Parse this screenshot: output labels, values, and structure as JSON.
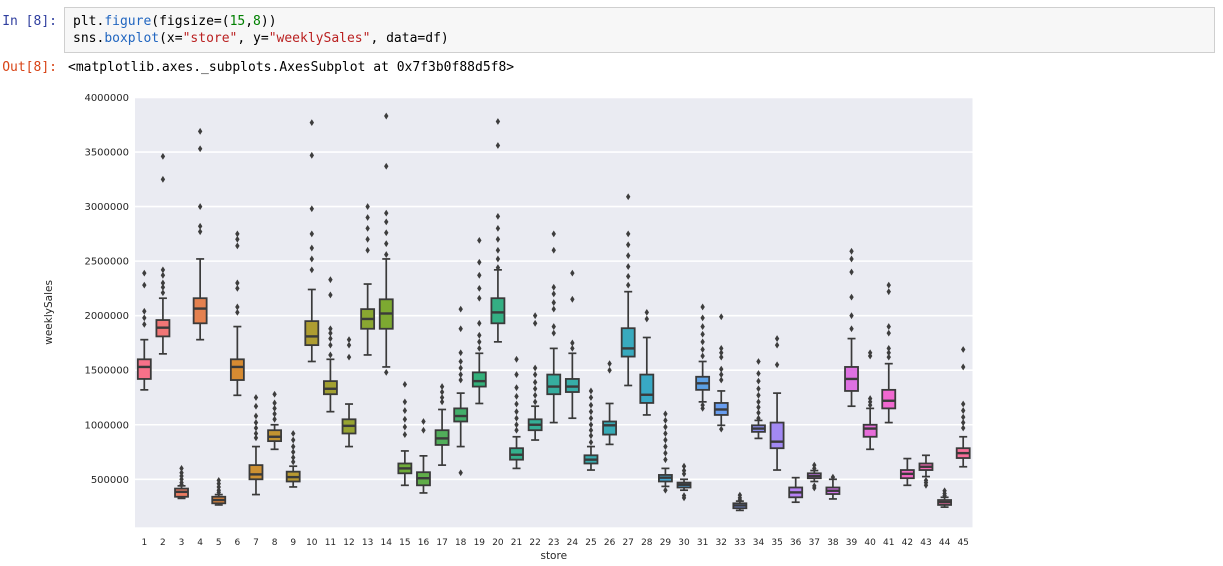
{
  "notebook": {
    "input_prompt": "In [8]:",
    "output_prompt": "Out[8]:",
    "output_text": "<matplotlib.axes._subplots.AxesSubplot at 0x7f3b0f88d5f8>",
    "code_lines": [
      [
        {
          "t": "plt.",
          "c": "plain"
        },
        {
          "t": "figure",
          "c": "prop"
        },
        {
          "t": "(figsize=(",
          "c": "plain"
        },
        {
          "t": "15",
          "c": "num"
        },
        {
          "t": ",",
          "c": "plain"
        },
        {
          "t": "8",
          "c": "num"
        },
        {
          "t": "))",
          "c": "plain"
        }
      ],
      [
        {
          "t": "sns.",
          "c": "plain"
        },
        {
          "t": "boxplot",
          "c": "prop"
        },
        {
          "t": "(x=",
          "c": "plain"
        },
        {
          "t": "\"store\"",
          "c": "str"
        },
        {
          "t": ", y=",
          "c": "plain"
        },
        {
          "t": "\"weeklySales\"",
          "c": "str"
        },
        {
          "t": ", data=df)",
          "c": "plain"
        }
      ]
    ],
    "colors": {
      "prompt_in": "#303f9f",
      "prompt_out": "#d84315",
      "code_bg": "#f7f7f7",
      "code_border": "#cfcfcf",
      "token_property": "#2166c0",
      "token_number": "#008000",
      "token_string": "#ba2121"
    }
  },
  "chart_data": {
    "type": "boxplot",
    "title": "",
    "xlabel": "store",
    "ylabel": "weeklySales",
    "ylim": [
      60000,
      4000000
    ],
    "yticks": [
      500000,
      1000000,
      1500000,
      2000000,
      2500000,
      3000000,
      3500000,
      4000000
    ],
    "ytick_labels": [
      "500000",
      "1000000",
      "1500000",
      "2000000",
      "2500000",
      "3000000",
      "3500000",
      "4000000"
    ],
    "categories": [
      "1",
      "2",
      "3",
      "4",
      "5",
      "6",
      "7",
      "8",
      "9",
      "10",
      "11",
      "12",
      "13",
      "14",
      "15",
      "16",
      "17",
      "18",
      "19",
      "20",
      "21",
      "22",
      "23",
      "24",
      "25",
      "26",
      "27",
      "28",
      "29",
      "30",
      "31",
      "32",
      "33",
      "34",
      "35",
      "36",
      "37",
      "38",
      "39",
      "40",
      "41",
      "42",
      "43",
      "44",
      "45"
    ],
    "grid": true,
    "legend": "none",
    "plot_bg": "#eaebf2",
    "grid_color": "#ffffff",
    "edge_color": "#3a3a3a",
    "flier_color": "#3d3d3d",
    "tick_color": "#262626",
    "palette": [
      "#f77189",
      "#f17676",
      "#eb7c62",
      "#e5814f",
      "#df863c",
      "#d78b32",
      "#cd9032",
      "#c29431",
      "#b89931",
      "#ae9d31",
      "#a2a031",
      "#96a331",
      "#89a631",
      "#7da931",
      "#6fac39",
      "#60ad49",
      "#51ae5a",
      "#42af6a",
      "#33b07a",
      "#34af83",
      "#34af8d",
      "#35ae96",
      "#36ad9f",
      "#36ada8",
      "#37acaf",
      "#37abb6",
      "#38aabe",
      "#38a9c5",
      "#44a6cf",
      "#50a3da",
      "#5ca0e4",
      "#689def",
      "#7897f4",
      "#8d90f4",
      "#a289f4",
      "#b781f4",
      "#cc7af4",
      "#d575eb",
      "#de71e2",
      "#e76cd9",
      "#f068d0",
      "#f566c5",
      "#f669b6",
      "#f66ca7",
      "#f76e98"
    ],
    "stores": [
      {
        "label": "1",
        "lo": 1320000,
        "q1": 1420000,
        "med": 1530000,
        "q3": 1600000,
        "hi": 1780000,
        "fliers": [
          1920000,
          1980000,
          2040000,
          2280000,
          2390000
        ]
      },
      {
        "label": "2",
        "lo": 1650000,
        "q1": 1810000,
        "med": 1890000,
        "q3": 1960000,
        "hi": 2160000,
        "fliers": [
          2210000,
          2260000,
          2300000,
          2370000,
          2420000,
          3250000,
          3460000
        ]
      },
      {
        "label": "3",
        "lo": 325000,
        "q1": 340000,
        "med": 385000,
        "q3": 415000,
        "hi": 440000,
        "fliers": [
          450000,
          470000,
          500000,
          530000,
          560000,
          600000
        ]
      },
      {
        "label": "4",
        "lo": 1780000,
        "q1": 1930000,
        "med": 2065000,
        "q3": 2160000,
        "hi": 2520000,
        "fliers": [
          2770000,
          2820000,
          3000000,
          3530000,
          3690000
        ]
      },
      {
        "label": "5",
        "lo": 265000,
        "q1": 280000,
        "med": 310000,
        "q3": 340000,
        "hi": 360000,
        "fliers": [
          380000,
          400000,
          430000,
          460000,
          490000
        ]
      },
      {
        "label": "6",
        "lo": 1270000,
        "q1": 1410000,
        "med": 1530000,
        "q3": 1600000,
        "hi": 1900000,
        "fliers": [
          2030000,
          2080000,
          2250000,
          2300000,
          2640000,
          2700000,
          2750000
        ]
      },
      {
        "label": "7",
        "lo": 360000,
        "q1": 500000,
        "med": 545000,
        "q3": 630000,
        "hi": 800000,
        "fliers": [
          880000,
          920000,
          970000,
          1020000,
          1080000,
          1170000,
          1250000
        ]
      },
      {
        "label": "8",
        "lo": 775000,
        "q1": 850000,
        "med": 890000,
        "q3": 950000,
        "hi": 1000000,
        "fliers": [
          1050000,
          1100000,
          1150000,
          1200000,
          1280000
        ]
      },
      {
        "label": "9",
        "lo": 430000,
        "q1": 480000,
        "med": 520000,
        "q3": 570000,
        "hi": 620000,
        "fliers": [
          660000,
          700000,
          750000,
          800000,
          860000,
          920000
        ]
      },
      {
        "label": "10",
        "lo": 1580000,
        "q1": 1730000,
        "med": 1810000,
        "q3": 1950000,
        "hi": 2240000,
        "fliers": [
          2420000,
          2520000,
          2620000,
          2750000,
          2980000,
          3470000,
          3770000
        ]
      },
      {
        "label": "11",
        "lo": 1120000,
        "q1": 1280000,
        "med": 1330000,
        "q3": 1400000,
        "hi": 1600000,
        "fliers": [
          1640000,
          1730000,
          1790000,
          1840000,
          1880000,
          2190000,
          2330000
        ]
      },
      {
        "label": "12",
        "lo": 800000,
        "q1": 920000,
        "med": 990000,
        "q3": 1050000,
        "hi": 1190000,
        "fliers": [
          1620000,
          1730000,
          1780000
        ]
      },
      {
        "label": "13",
        "lo": 1640000,
        "q1": 1880000,
        "med": 1970000,
        "q3": 2060000,
        "hi": 2290000,
        "fliers": [
          2600000,
          2700000,
          2800000,
          2900000,
          3000000
        ]
      },
      {
        "label": "14",
        "lo": 1530000,
        "q1": 1880000,
        "med": 2020000,
        "q3": 2150000,
        "hi": 2520000,
        "fliers": [
          1480000,
          2560000,
          2660000,
          2760000,
          2860000,
          2940000,
          3370000,
          3830000
        ]
      },
      {
        "label": "15",
        "lo": 445000,
        "q1": 555000,
        "med": 600000,
        "q3": 645000,
        "hi": 760000,
        "fliers": [
          910000,
          980000,
          1050000,
          1130000,
          1210000,
          1370000
        ]
      },
      {
        "label": "16",
        "lo": 375000,
        "q1": 445000,
        "med": 510000,
        "q3": 565000,
        "hi": 715000,
        "fliers": [
          950000,
          1030000
        ]
      },
      {
        "label": "17",
        "lo": 630000,
        "q1": 815000,
        "med": 875000,
        "q3": 950000,
        "hi": 1140000,
        "fliers": [
          1210000,
          1250000,
          1300000,
          1350000
        ]
      },
      {
        "label": "18",
        "lo": 800000,
        "q1": 1030000,
        "med": 1080000,
        "q3": 1150000,
        "hi": 1290000,
        "fliers": [
          560000,
          1410000,
          1460000,
          1520000,
          1580000,
          1660000,
          1880000,
          2060000
        ]
      },
      {
        "label": "19",
        "lo": 1195000,
        "q1": 1350000,
        "med": 1400000,
        "q3": 1480000,
        "hi": 1655000,
        "fliers": [
          1700000,
          1760000,
          1820000,
          1930000,
          2160000,
          2250000,
          2370000,
          2490000,
          2690000
        ]
      },
      {
        "label": "20",
        "lo": 1760000,
        "q1": 1930000,
        "med": 2030000,
        "q3": 2160000,
        "hi": 2420000,
        "fliers": [
          2440000,
          2520000,
          2600000,
          2700000,
          2800000,
          2910000,
          3560000,
          3780000
        ]
      },
      {
        "label": "21",
        "lo": 600000,
        "q1": 680000,
        "med": 725000,
        "q3": 785000,
        "hi": 890000,
        "fliers": [
          950000,
          1000000,
          1060000,
          1120000,
          1190000,
          1260000,
          1340000,
          1460000,
          1600000
        ]
      },
      {
        "label": "22",
        "lo": 860000,
        "q1": 950000,
        "med": 1000000,
        "q3": 1050000,
        "hi": 1170000,
        "fliers": [
          1210000,
          1270000,
          1330000,
          1390000,
          1460000,
          1520000,
          1930000,
          2000000
        ]
      },
      {
        "label": "23",
        "lo": 1020000,
        "q1": 1280000,
        "med": 1350000,
        "q3": 1460000,
        "hi": 1700000,
        "fliers": [
          1840000,
          1900000,
          2060000,
          2120000,
          2200000,
          2260000,
          2600000,
          2750000
        ]
      },
      {
        "label": "24",
        "lo": 1060000,
        "q1": 1300000,
        "med": 1350000,
        "q3": 1420000,
        "hi": 1655000,
        "fliers": [
          1700000,
          1750000,
          2150000,
          2390000
        ]
      },
      {
        "label": "25",
        "lo": 585000,
        "q1": 645000,
        "med": 680000,
        "q3": 720000,
        "hi": 800000,
        "fliers": [
          840000,
          900000,
          950000,
          1000000,
          1060000,
          1120000,
          1180000,
          1250000,
          1310000
        ]
      },
      {
        "label": "26",
        "lo": 820000,
        "q1": 910000,
        "med": 995000,
        "q3": 1030000,
        "hi": 1195000,
        "fliers": [
          1500000,
          1560000
        ]
      },
      {
        "label": "27",
        "lo": 1360000,
        "q1": 1625000,
        "med": 1700000,
        "q3": 1885000,
        "hi": 2220000,
        "fliers": [
          2280000,
          2360000,
          2450000,
          2550000,
          2650000,
          2750000,
          3090000
        ]
      },
      {
        "label": "28",
        "lo": 1090000,
        "q1": 1200000,
        "med": 1275000,
        "q3": 1460000,
        "hi": 1800000,
        "fliers": [
          1970000,
          2030000
        ]
      },
      {
        "label": "29",
        "lo": 435000,
        "q1": 480000,
        "med": 515000,
        "q3": 540000,
        "hi": 600000,
        "fliers": [
          400000,
          680000,
          740000,
          800000,
          860000,
          920000,
          980000,
          1040000,
          1100000
        ]
      },
      {
        "label": "30",
        "lo": 400000,
        "q1": 425000,
        "med": 450000,
        "q3": 470000,
        "hi": 500000,
        "fliers": [
          330000,
          350000,
          550000,
          580000,
          620000
        ]
      },
      {
        "label": "31",
        "lo": 1210000,
        "q1": 1320000,
        "med": 1380000,
        "q3": 1440000,
        "hi": 1580000,
        "fliers": [
          1150000,
          1180000,
          1630000,
          1690000,
          1760000,
          1830000,
          1900000,
          1980000,
          2080000
        ]
      },
      {
        "label": "32",
        "lo": 995000,
        "q1": 1090000,
        "med": 1140000,
        "q3": 1200000,
        "hi": 1310000,
        "fliers": [
          960000,
          1410000,
          1460000,
          1510000,
          1620000,
          1660000,
          1700000,
          1990000
        ]
      },
      {
        "label": "33",
        "lo": 215000,
        "q1": 235000,
        "med": 260000,
        "q3": 280000,
        "hi": 300000,
        "fliers": [
          310000,
          330000,
          355000
        ]
      },
      {
        "label": "34",
        "lo": 875000,
        "q1": 935000,
        "med": 965000,
        "q3": 995000,
        "hi": 1040000,
        "fliers": [
          1060000,
          1110000,
          1160000,
          1210000,
          1270000,
          1330000,
          1400000,
          1470000,
          1580000
        ]
      },
      {
        "label": "35",
        "lo": 585000,
        "q1": 785000,
        "med": 845000,
        "q3": 1020000,
        "hi": 1290000,
        "fliers": [
          1550000,
          1730000,
          1790000
        ]
      },
      {
        "label": "36",
        "lo": 290000,
        "q1": 335000,
        "med": 380000,
        "q3": 425000,
        "hi": 515000,
        "fliers": []
      },
      {
        "label": "37",
        "lo": 480000,
        "q1": 510000,
        "med": 530000,
        "q3": 555000,
        "hi": 580000,
        "fliers": [
          420000,
          440000,
          600000,
          630000
        ]
      },
      {
        "label": "38",
        "lo": 320000,
        "q1": 365000,
        "med": 395000,
        "q3": 425000,
        "hi": 500000,
        "fliers": [
          520000
        ]
      },
      {
        "label": "39",
        "lo": 1170000,
        "q1": 1310000,
        "med": 1420000,
        "q3": 1530000,
        "hi": 1790000,
        "fliers": [
          1880000,
          2000000,
          2170000,
          2400000,
          2520000,
          2590000
        ]
      },
      {
        "label": "40",
        "lo": 775000,
        "q1": 890000,
        "med": 965000,
        "q3": 1000000,
        "hi": 1150000,
        "fliers": [
          1180000,
          1210000,
          1240000,
          1630000,
          1660000
        ]
      },
      {
        "label": "41",
        "lo": 1020000,
        "q1": 1150000,
        "med": 1220000,
        "q3": 1320000,
        "hi": 1560000,
        "fliers": [
          1620000,
          1660000,
          1700000,
          1840000,
          1900000,
          2220000,
          2280000
        ]
      },
      {
        "label": "42",
        "lo": 445000,
        "q1": 510000,
        "med": 550000,
        "q3": 585000,
        "hi": 690000,
        "fliers": []
      },
      {
        "label": "43",
        "lo": 525000,
        "q1": 585000,
        "med": 615000,
        "q3": 645000,
        "hi": 720000,
        "fliers": [
          445000,
          470000,
          490000
        ]
      },
      {
        "label": "44",
        "lo": 245000,
        "q1": 265000,
        "med": 290000,
        "q3": 310000,
        "hi": 335000,
        "fliers": [
          350000,
          370000,
          395000
        ]
      },
      {
        "label": "45",
        "lo": 615000,
        "q1": 695000,
        "med": 740000,
        "q3": 785000,
        "hi": 890000,
        "fliers": [
          970000,
          1020000,
          1070000,
          1130000,
          1190000,
          1530000,
          1690000
        ]
      }
    ]
  }
}
